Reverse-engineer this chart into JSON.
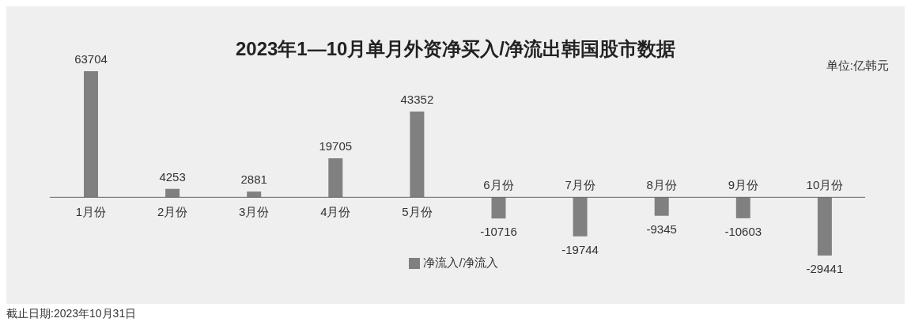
{
  "chart_data": {
    "type": "bar",
    "title": "2023年1—10月单月外资净买入/净流出韩国股市数据",
    "categories": [
      "1月份",
      "2月份",
      "3月份",
      "4月份",
      "5月份",
      "6月份",
      "7月份",
      "8月份",
      "9月份",
      "10月份"
    ],
    "series": [
      {
        "name": "净流入/净流入",
        "color": "#808080",
        "values": [
          63704,
          4253,
          2881,
          19705,
          43352,
          -10716,
          -19744,
          -9345,
          -10603,
          -29441
        ]
      }
    ],
    "data_labels": true,
    "legend": "bottom",
    "annotations": [
      "单位:亿韩元",
      "截止日期:2023年10月31日"
    ]
  }
}
